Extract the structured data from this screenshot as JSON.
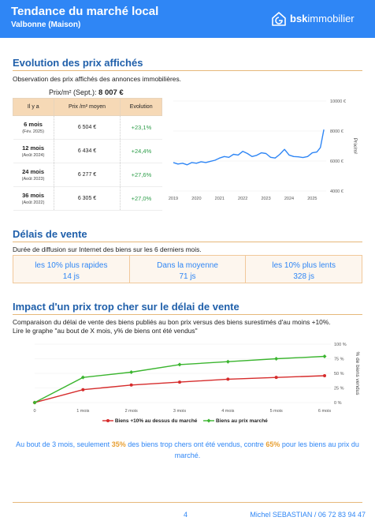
{
  "header": {
    "title": "Tendance du marché local",
    "subtitle": "Valbonne (Maison)",
    "logo_bold": "bsk",
    "logo_rest": "immobilier",
    "logo_icon": "house-icon"
  },
  "section1": {
    "title": "Evolution des prix affichés",
    "description": "Observation des prix affichés des annonces immobilières.",
    "price_label": "Prix/m² (Sept.): ",
    "price_value": "8 007 €",
    "table": {
      "headers": [
        "Il y a",
        "Prix /m² moyen",
        "Evolution"
      ],
      "rows": [
        {
          "period": "6 mois",
          "date": "(Fév. 2025)",
          "price": "6 504 €",
          "evolution": "+23,1%"
        },
        {
          "period": "12 mois",
          "date": "(Août 2024)",
          "price": "6 434 €",
          "evolution": "+24,4%"
        },
        {
          "period": "24 mois",
          "date": "(Août 2023)",
          "price": "6 277 €",
          "evolution": "+27,6%"
        },
        {
          "period": "36 mois",
          "date": "(Août 2022)",
          "price": "6 305 €",
          "evolution": "+27,0%"
        }
      ]
    }
  },
  "chart_data": [
    {
      "type": "line",
      "ylabel": "Prix/m²",
      "ylim": [
        4000,
        10000
      ],
      "yticks": [
        "4000 €",
        "6000 €",
        "8000 €",
        "10000 €"
      ],
      "ytick_values": [
        4000,
        6000,
        8000,
        10000
      ],
      "xticks": [
        "2019",
        "2020",
        "2021",
        "2022",
        "2023",
        "2024",
        "2025"
      ],
      "x_range": [
        2019,
        2025.6
      ],
      "grid": true,
      "series": [
        {
          "color": "#2f86f5",
          "x": [
            2019.0,
            2019.2,
            2019.4,
            2019.6,
            2019.8,
            2020.0,
            2020.2,
            2020.4,
            2020.6,
            2020.8,
            2021.0,
            2021.2,
            2021.4,
            2021.6,
            2021.8,
            2022.0,
            2022.2,
            2022.4,
            2022.6,
            2022.8,
            2023.0,
            2023.2,
            2023.4,
            2023.6,
            2023.8,
            2024.0,
            2024.2,
            2024.4,
            2024.6,
            2024.8,
            2025.0,
            2025.2,
            2025.35,
            2025.5
          ],
          "y": [
            5900,
            5800,
            5850,
            5750,
            5900,
            5850,
            5950,
            5900,
            5980,
            6050,
            6200,
            6300,
            6250,
            6450,
            6400,
            6650,
            6500,
            6300,
            6380,
            6550,
            6500,
            6250,
            6200,
            6450,
            6780,
            6400,
            6300,
            6280,
            6230,
            6300,
            6550,
            6600,
            6900,
            8100
          ]
        }
      ]
    },
    {
      "type": "line",
      "ylabel": "% de biens vendus",
      "ylim": [
        0,
        100
      ],
      "yticks": [
        "0 %",
        "25 %",
        "50 %",
        "75 %",
        "100 %"
      ],
      "ytick_values": [
        0,
        25,
        50,
        75,
        100
      ],
      "categories": [
        "0",
        "1 mois",
        "2 mois",
        "3 mois",
        "4 mois",
        "5 mois",
        "6 mois"
      ],
      "grid": true,
      "legend": "bottom",
      "series": [
        {
          "name": "Biens +10% au dessus du marché",
          "color": "#d62c2c",
          "values": [
            0,
            22,
            30,
            35,
            40,
            43,
            46
          ]
        },
        {
          "name": "Biens au prix marché",
          "color": "#3bb52f",
          "values": [
            0,
            43,
            52,
            65,
            70,
            75,
            79
          ]
        }
      ]
    }
  ],
  "section2": {
    "title": "Délais de vente",
    "description": "Durée de diffusion sur Internet des biens sur les 6 derniers mois.",
    "cells": [
      {
        "label": "les 10% plus rapides",
        "value": "14 js"
      },
      {
        "label": "Dans la moyenne",
        "value": "71 js"
      },
      {
        "label": "les 10% plus lents",
        "value": "328 js"
      }
    ]
  },
  "section3": {
    "title": "Impact d'un prix trop cher sur le délai de vente",
    "description1": "Comparaison du délai de vente des biens publiés au bon prix versus des biens surestimés d'au moins +10%.",
    "description2": "Lire le graphe \"au bout de X mois, y% de biens ont été vendus\"",
    "conclusion_a": "Au bout de 3 mois, seulement ",
    "conclusion_hl1": "35%",
    "conclusion_b": " des biens trop chers ont été vendus, contre ",
    "conclusion_hl2": "65%",
    "conclusion_c": " pour les biens au prix du marché."
  },
  "footer": {
    "page": "4",
    "agent": "Michel SEBASTIAN / 06 72 83 94 47"
  }
}
